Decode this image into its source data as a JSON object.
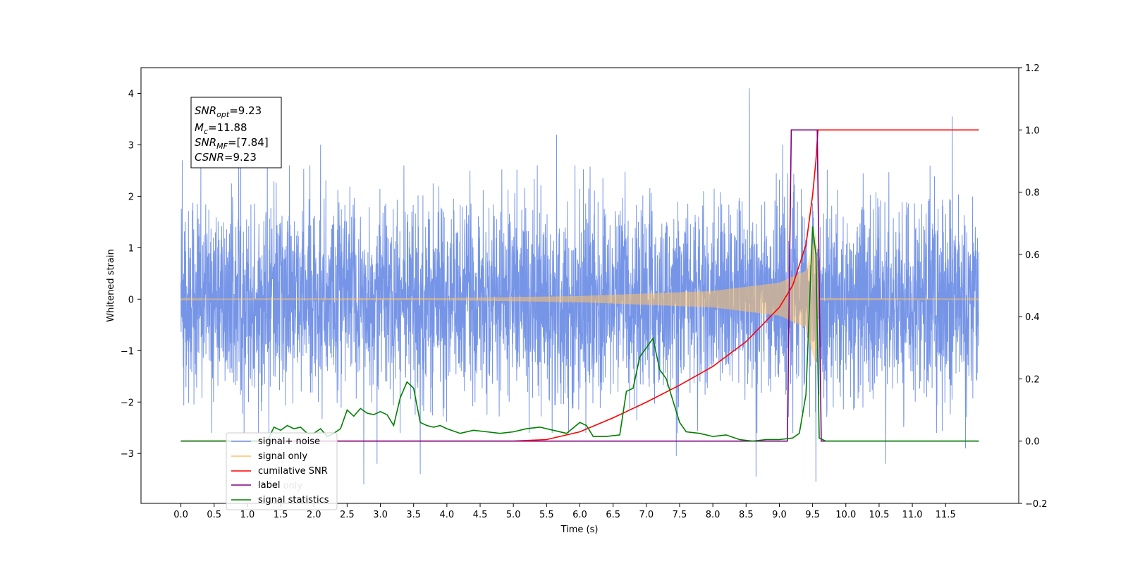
{
  "chart_data": {
    "type": "line",
    "xlabel": "Time (s)",
    "ylabel_left": "Whitened strain",
    "ylabel_right": "",
    "xlim": [
      -0.6,
      12.6
    ],
    "ylim_left": [
      -3.97,
      4.5
    ],
    "ylim_right": [
      -0.2,
      1.2
    ],
    "x_ticks": [
      0.0,
      0.5,
      1.0,
      1.5,
      2.0,
      2.5,
      3.0,
      3.5,
      4.0,
      4.5,
      5.0,
      5.5,
      6.0,
      6.5,
      7.0,
      7.5,
      8.0,
      8.5,
      9.0,
      9.5,
      10.0,
      10.5,
      11.0,
      11.5
    ],
    "x_tick_labels": [
      "0.0",
      "0.5",
      "1.0",
      "1.5",
      "2.0",
      "2.5",
      "3.0",
      "3.5",
      "4.0",
      "4.5",
      "5.0",
      "5.5",
      "6.0",
      "6.5",
      "7.0",
      "7.5",
      "8.0",
      "8.5",
      "9.0",
      "9.5",
      "10.0",
      "10.5",
      "11.0",
      "11.5"
    ],
    "y_left_ticks": [
      -3,
      -2,
      -1,
      0,
      1,
      2,
      3,
      4
    ],
    "y_left_tick_labels": [
      "−3",
      "−2",
      "−1",
      "0",
      "1",
      "2",
      "3",
      "4"
    ],
    "y_right_ticks": [
      -0.2,
      0.0,
      0.2,
      0.4,
      0.6,
      0.8,
      1.0,
      1.2
    ],
    "y_right_tick_labels": [
      "−0.2",
      "0.0",
      "0.2",
      "0.4",
      "0.6",
      "0.8",
      "1.0",
      "1.2"
    ],
    "legend": {
      "position": "lower-left",
      "entries": [
        {
          "label": "signal+ noise",
          "color": "#6f8fe6"
        },
        {
          "label": "signal only",
          "color": "#ffc266"
        },
        {
          "label": "cumilative SNR",
          "color": "#ff0000"
        },
        {
          "label": "label",
          "color": "#800080"
        },
        {
          "label": "signal statistics",
          "color": "#008000"
        }
      ],
      "hidden_entry": "label only"
    },
    "annotations": {
      "snr_opt": {
        "name": "SNR",
        "sub": "opt",
        "value": "=9.23"
      },
      "mc": {
        "name": "M",
        "sub": "c",
        "value": "=11.88"
      },
      "snr_mf": {
        "name": "SNR",
        "sub": "MF",
        "value": "=[7.84]"
      },
      "csnr": {
        "name": "CSNR",
        "value": "=9.23"
      }
    },
    "series": [
      {
        "name": "signal+ noise",
        "axis": "left",
        "kind": "noise-band",
        "x_range": [
          0.0,
          12.0
        ],
        "typical_spread": 1.3,
        "upper_peaks": [
          [
            0.02,
            2.7
          ],
          [
            0.3,
            2.6
          ],
          [
            0.9,
            3.3
          ],
          [
            1.3,
            3.1
          ],
          [
            2.1,
            3.0
          ],
          [
            5.65,
            3.2
          ],
          [
            8.55,
            4.1
          ],
          [
            9.05,
            3.0
          ],
          [
            11.6,
            3.55
          ]
        ],
        "lower_peaks": [
          [
            0.3,
            -3.15
          ],
          [
            2.75,
            -3.6
          ],
          [
            2.95,
            -3.2
          ],
          [
            3.6,
            -3.4
          ],
          [
            7.45,
            -3.05
          ],
          [
            8.65,
            -3.45
          ],
          [
            9.55,
            -3.55
          ],
          [
            10.6,
            -3.2
          ],
          [
            11.8,
            -2.9
          ]
        ],
        "color": "#6f8fe6"
      },
      {
        "name": "signal only",
        "axis": "left",
        "kind": "chirp",
        "x_range": [
          0.0,
          12.0
        ],
        "envelope": [
          [
            0.0,
            0.01
          ],
          [
            4.0,
            0.02
          ],
          [
            6.0,
            0.06
          ],
          [
            8.0,
            0.16
          ],
          [
            9.0,
            0.32
          ],
          [
            9.4,
            0.55
          ],
          [
            9.55,
            1.3
          ],
          [
            9.6,
            0.02
          ],
          [
            12.0,
            0.01
          ]
        ],
        "color": "#ffc266"
      },
      {
        "name": "cumilative SNR",
        "axis": "right",
        "x": [
          0.0,
          5.0,
          5.5,
          6.0,
          6.5,
          7.0,
          7.5,
          8.0,
          8.5,
          9.0,
          9.2,
          9.4,
          9.5,
          9.55,
          9.58,
          9.6,
          12.0
        ],
        "y": [
          0.0,
          0.0,
          0.005,
          0.03,
          0.075,
          0.125,
          0.18,
          0.24,
          0.32,
          0.43,
          0.5,
          0.63,
          0.79,
          0.9,
          1.0,
          1.0,
          1.0
        ],
        "color": "#ff0000"
      },
      {
        "name": "label",
        "axis": "right",
        "x": [
          0.0,
          9.12,
          9.18,
          9.57,
          9.63,
          12.0
        ],
        "y": [
          0.0,
          0.0,
          1.0,
          1.0,
          0.0,
          0.0
        ],
        "color": "#800080"
      },
      {
        "name": "signal statistics",
        "axis": "right",
        "x": [
          0.0,
          1.3,
          1.4,
          1.5,
          1.6,
          1.7,
          1.8,
          1.9,
          2.0,
          2.1,
          2.2,
          2.3,
          2.4,
          2.5,
          2.6,
          2.7,
          2.8,
          2.9,
          3.0,
          3.1,
          3.2,
          3.3,
          3.4,
          3.5,
          3.6,
          3.7,
          3.8,
          3.9,
          4.0,
          4.2,
          4.4,
          4.6,
          4.8,
          5.0,
          5.2,
          5.4,
          5.6,
          5.8,
          6.0,
          6.1,
          6.2,
          6.4,
          6.6,
          6.7,
          6.8,
          6.9,
          7.0,
          7.1,
          7.2,
          7.3,
          7.4,
          7.5,
          7.6,
          7.8,
          8.0,
          8.2,
          8.4,
          8.6,
          8.8,
          9.0,
          9.2,
          9.3,
          9.4,
          9.5,
          9.55,
          9.6,
          9.7,
          12.0
        ],
        "y": [
          0.0,
          0.0,
          0.045,
          0.035,
          0.05,
          0.04,
          0.045,
          0.025,
          0.025,
          0.04,
          0.015,
          0.025,
          0.04,
          0.1,
          0.08,
          0.105,
          0.09,
          0.085,
          0.095,
          0.085,
          0.05,
          0.14,
          0.19,
          0.17,
          0.06,
          0.05,
          0.045,
          0.05,
          0.04,
          0.025,
          0.035,
          0.03,
          0.025,
          0.03,
          0.04,
          0.045,
          0.035,
          0.025,
          0.06,
          0.05,
          0.015,
          0.015,
          0.02,
          0.16,
          0.17,
          0.27,
          0.3,
          0.33,
          0.23,
          0.2,
          0.13,
          0.06,
          0.03,
          0.025,
          0.015,
          0.02,
          0.005,
          0.0,
          0.005,
          0.005,
          0.01,
          0.025,
          0.15,
          0.69,
          0.6,
          0.01,
          0.0,
          0.0
        ],
        "color": "#008000"
      }
    ]
  }
}
